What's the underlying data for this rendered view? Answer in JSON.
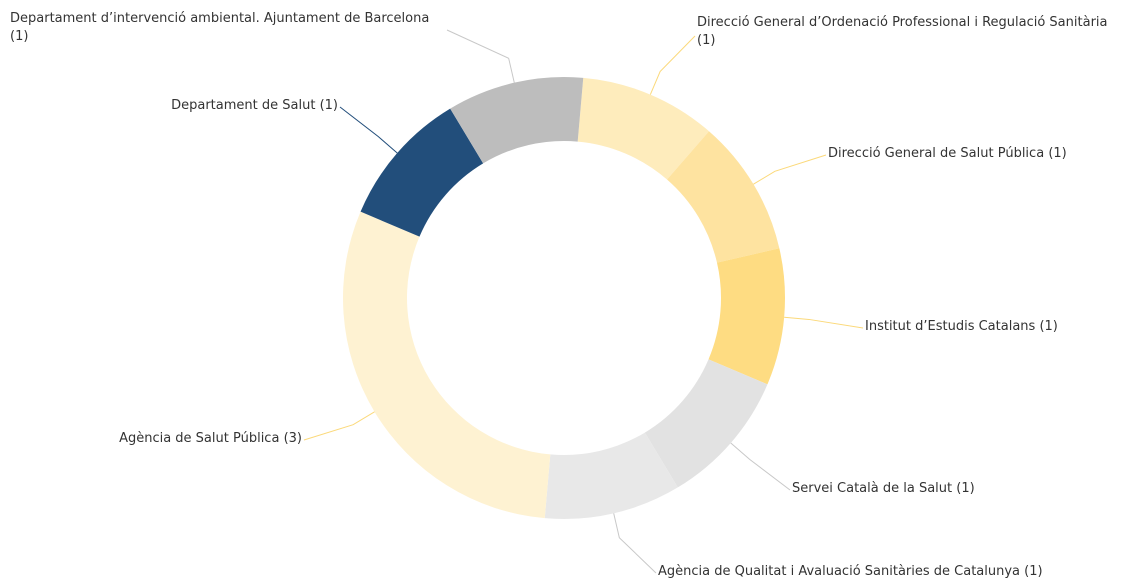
{
  "chart_data": {
    "type": "donut",
    "categories": [
      "Direcció General d’Ordenació Professional i Regulació Sanitària",
      "Direcció General de Salut Pública",
      "Institut d’Estudis Catalans",
      "Servei Català de la Salut",
      "Agència de Qualitat i Avaluació Sanitàries de Catalunya",
      "Agència de Salut Pública",
      "Departament de Salut",
      "Departament d’intervenció ambiental. Ajuntament de Barcelona"
    ],
    "values": [
      1,
      1,
      1,
      1,
      1,
      3,
      1,
      1
    ],
    "value_labels": [
      "(1)",
      "(1)",
      "(1)",
      "(1)",
      "(1)",
      "(3)",
      "(1)",
      "(1)"
    ],
    "colors": [
      "#feecbc",
      "#fee3a0",
      "#fedc82",
      "#e2e2e2",
      "#e8e8e8",
      "#fef2d2",
      "#224e7b",
      "#bdbdbd"
    ]
  }
}
